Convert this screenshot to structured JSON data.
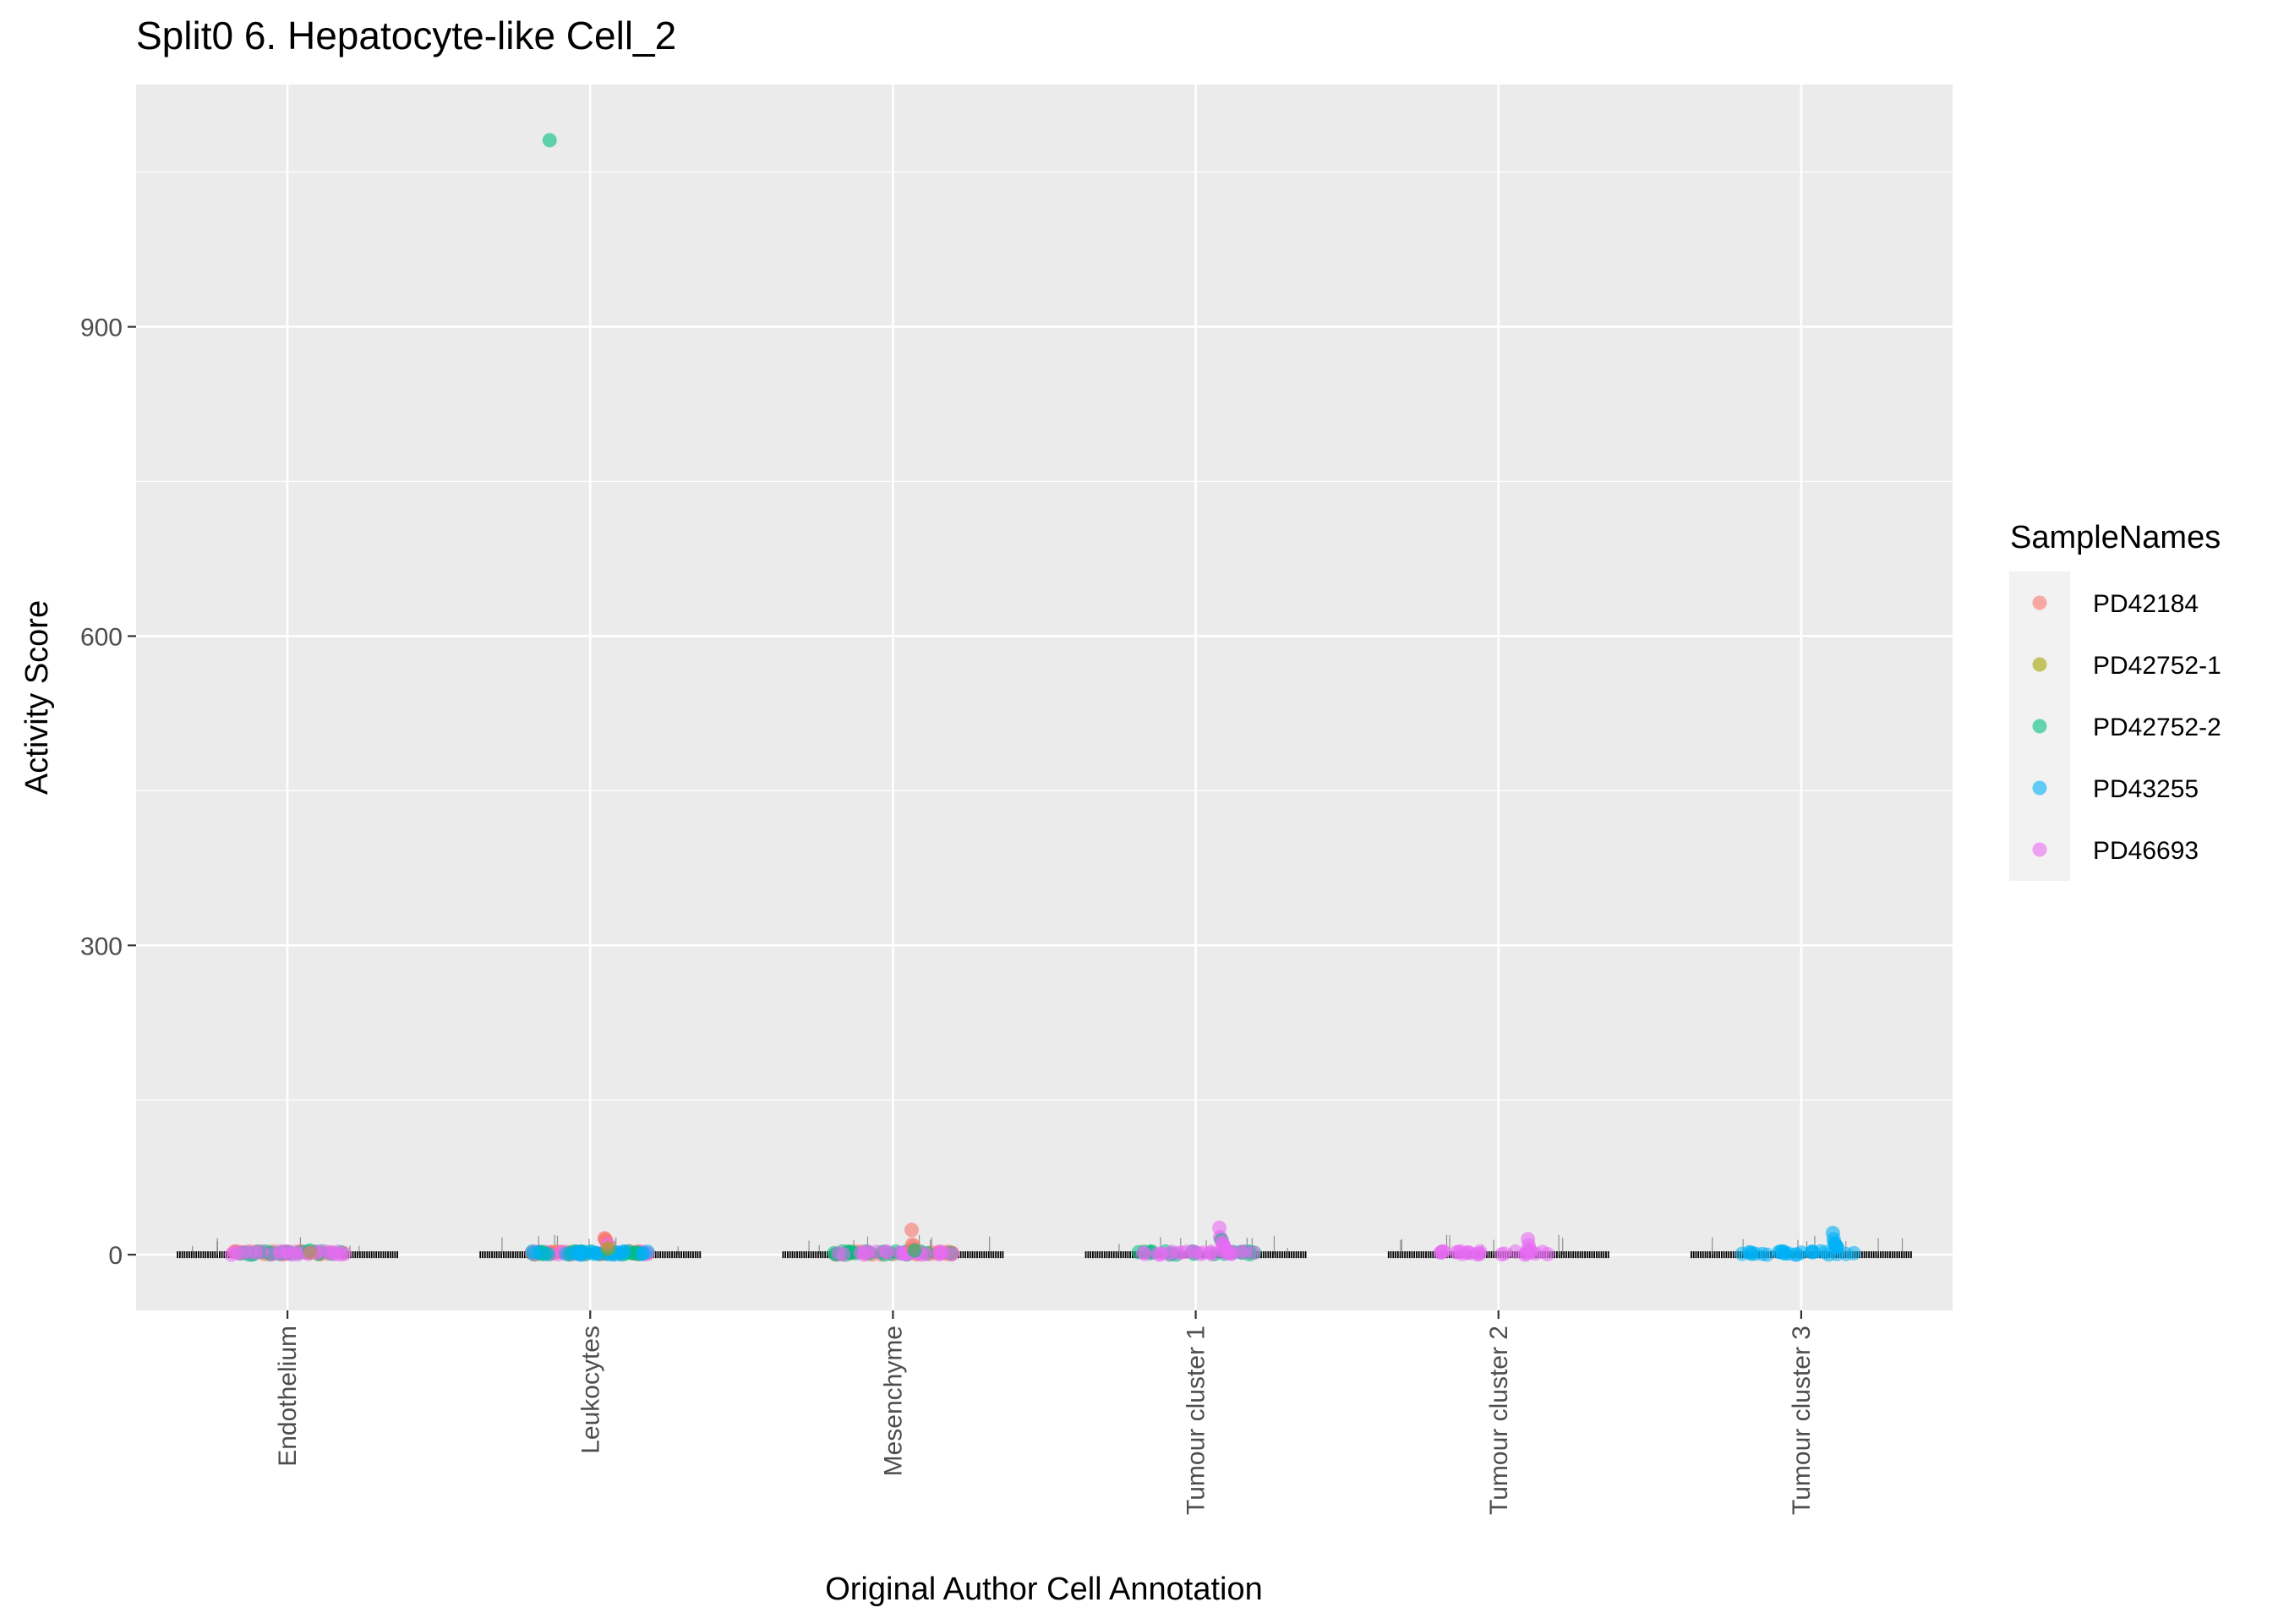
{
  "chart_data": {
    "type": "scatter",
    "title": "Split0 6. Hepatocyte-like Cell_2",
    "xlabel": "Original Author Cell Annotation",
    "ylabel": "Activity Score",
    "categories": [
      "Endothelium",
      "Leukocytes",
      "Mesenchyme",
      "Tumour cluster 1",
      "Tumour cluster 2",
      "Tumour cluster 3"
    ],
    "y_ticks": [
      0,
      300,
      600,
      900
    ],
    "y_tick_labels": [
      "0",
      "300",
      "600",
      "900"
    ],
    "ylim": [
      -54,
      1135
    ],
    "grid": true,
    "legend": {
      "title": "SampleNames",
      "position": "right",
      "entries": [
        "PD42184",
        "PD42752-1",
        "PD42752-2",
        "PD43255",
        "PD46693"
      ]
    },
    "series_colors": {
      "PD42184": "#F8766D",
      "PD42752-1": "#A3A500",
      "PD42752-2": "#00BF7D",
      "PD43255": "#00B0F6",
      "PD46693": "#E76BF3"
    },
    "points": [
      {
        "category": "Leukocytes",
        "sample": "PD42752-2",
        "y": 1081
      },
      {
        "category": "Leukocytes",
        "sample": "PD42184",
        "y": 16
      },
      {
        "category": "Leukocytes",
        "sample": "PD42184",
        "y": 15
      },
      {
        "category": "Leukocytes",
        "sample": "PD42184",
        "y": 14
      },
      {
        "category": "Leukocytes",
        "sample": "PD42184",
        "y": 12
      },
      {
        "category": "Leukocytes",
        "sample": "PD46693",
        "y": 10
      },
      {
        "category": "Leukocytes",
        "sample": "PD42752-1",
        "y": 6
      },
      {
        "category": "Mesenchyme",
        "sample": "PD42184",
        "y": 24
      },
      {
        "category": "Mesenchyme",
        "sample": "PD42184",
        "y": 10
      },
      {
        "category": "Mesenchyme",
        "sample": "PD42184",
        "y": 8
      },
      {
        "category": "Mesenchyme",
        "sample": "PD42184",
        "y": 5
      },
      {
        "category": "Mesenchyme",
        "sample": "PD42752-2",
        "y": 4
      },
      {
        "category": "Endothelium",
        "sample": "PD42752-2",
        "y": 4
      },
      {
        "category": "Endothelium",
        "sample": "PD42184",
        "y": 2
      },
      {
        "category": "Tumour cluster 1",
        "sample": "PD46693",
        "y": 26
      },
      {
        "category": "Tumour cluster 1",
        "sample": "PD46693",
        "y": 17
      },
      {
        "category": "Tumour cluster 1",
        "sample": "PD46693",
        "y": 15
      },
      {
        "category": "Tumour cluster 1",
        "sample": "PD42752-2",
        "y": 14
      },
      {
        "category": "Tumour cluster 1",
        "sample": "PD46693",
        "y": 12
      },
      {
        "category": "Tumour cluster 1",
        "sample": "PD46693",
        "y": 10
      },
      {
        "category": "Tumour cluster 1",
        "sample": "PD46693",
        "y": 8
      },
      {
        "category": "Tumour cluster 1",
        "sample": "PD46693",
        "y": 7
      },
      {
        "category": "Tumour cluster 2",
        "sample": "PD46693",
        "y": 15
      },
      {
        "category": "Tumour cluster 2",
        "sample": "PD46693",
        "y": 9
      },
      {
        "category": "Tumour cluster 2",
        "sample": "PD46693",
        "y": 5
      },
      {
        "category": "Tumour cluster 3",
        "sample": "PD43255",
        "y": 21
      },
      {
        "category": "Tumour cluster 3",
        "sample": "PD43255",
        "y": 15
      },
      {
        "category": "Tumour cluster 3",
        "sample": "PD43255",
        "y": 11
      },
      {
        "category": "Tumour cluster 3",
        "sample": "PD43255",
        "y": 10
      },
      {
        "category": "Tumour cluster 3",
        "sample": "PD43255",
        "y": 9
      },
      {
        "category": "Tumour cluster 3",
        "sample": "PD43255",
        "y": 8
      },
      {
        "category": "Tumour cluster 3",
        "sample": "PD43255",
        "y": 7
      }
    ],
    "baseline_clusters": [
      {
        "category": "Endothelium",
        "samples": [
          "PD42184",
          "PD42752-2",
          "PD46693"
        ]
      },
      {
        "category": "Leukocytes",
        "samples": [
          "PD42184",
          "PD46693",
          "PD42752-2",
          "PD43255"
        ]
      },
      {
        "category": "Mesenchyme",
        "samples": [
          "PD42184",
          "PD42752-2",
          "PD46693"
        ]
      },
      {
        "category": "Tumour cluster 1",
        "samples": [
          "PD42752-2",
          "PD46693"
        ]
      },
      {
        "category": "Tumour cluster 2",
        "samples": [
          "PD46693"
        ]
      },
      {
        "category": "Tumour cluster 3",
        "samples": [
          "PD43255"
        ]
      }
    ]
  }
}
